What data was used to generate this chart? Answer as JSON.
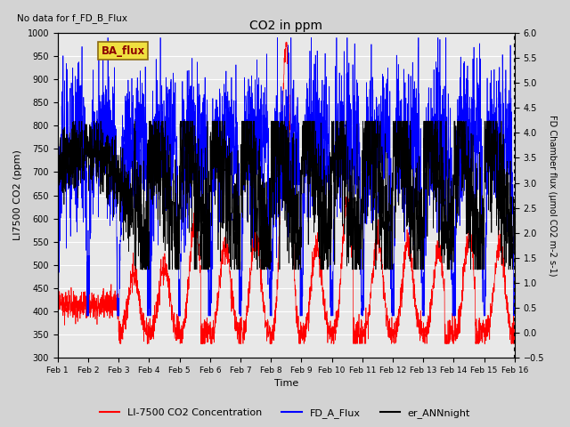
{
  "title": "CO2 in ppm",
  "no_data_text": "No data for f_FD_B_Flux",
  "ba_flux_label": "BA_flux",
  "xlabel": "Time",
  "ylabel_left": "LI7500 CO2 (ppm)",
  "ylabel_right": "FD Chamber flux (μmol CO2 m-2 s-1)",
  "ylim_left": [
    300,
    1000
  ],
  "ylim_right": [
    -0.5,
    6.0
  ],
  "xtick_labels": [
    "Feb 1",
    "Feb 2",
    "Feb 3",
    "Feb 4",
    "Feb 5",
    "Feb 6",
    "Feb 7",
    "Feb 8",
    "Feb 9",
    "Feb 10",
    "Feb 11",
    "Feb 12",
    "Feb 13",
    "Feb 14",
    "Feb 15",
    "Feb 16"
  ],
  "legend_entries": [
    "LI-7500 CO2 Concentration",
    "FD_A_Flux",
    "er_ANNnight"
  ],
  "bg_color": "#d3d3d3",
  "plot_bg_color": "#e8e8e8",
  "n_points": 2880,
  "days": 15,
  "seed": 42
}
